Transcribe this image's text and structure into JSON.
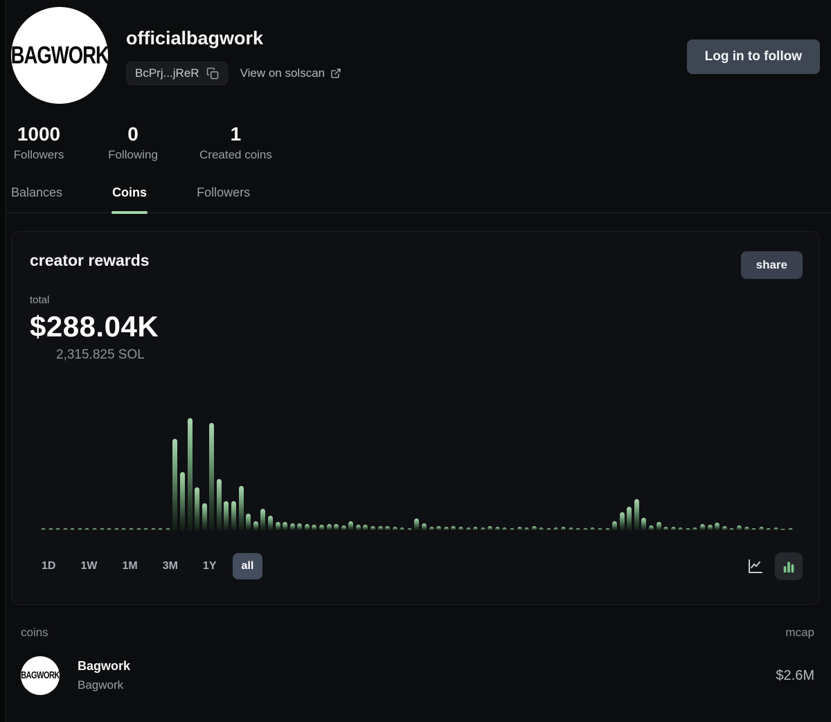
{
  "header": {
    "avatar_text": "BAGWORK",
    "username": "officialbagwork",
    "address_short": "BcPrj...jReR",
    "solscan_link": "View on solscan",
    "follow_button": "Log in to follow"
  },
  "stats": {
    "items": [
      {
        "value": "1000",
        "label": "Followers"
      },
      {
        "value": "0",
        "label": "Following"
      },
      {
        "value": "1",
        "label": "Created coins"
      }
    ]
  },
  "tabs": {
    "items": [
      {
        "label": "Balances",
        "active": false
      },
      {
        "label": "Coins",
        "active": true
      },
      {
        "label": "Followers",
        "active": false
      }
    ]
  },
  "rewards_card": {
    "title": "creator rewards",
    "share_button": "share",
    "total_label": "total",
    "total_usd": "$288.04K",
    "total_sol": "2,315.825 SOL"
  },
  "chart_controls": {
    "ranges": [
      "1D",
      "1W",
      "1M",
      "3M",
      "1Y",
      "all"
    ],
    "active_range": "all",
    "chart_types": [
      "line",
      "bar"
    ],
    "active_chart_type": "bar"
  },
  "chart_data": {
    "type": "bar",
    "title": "creator rewards over time (all)",
    "xlabel": "",
    "ylabel": "",
    "axis_labels_shown": false,
    "unit": "relative bar height in px (no numeric axis shown on screen)",
    "ylim": [
      0,
      170
    ],
    "bar_color_top": "#aad6ae",
    "bar_color_bottom": "#121b14",
    "values": [
      3,
      3,
      3,
      3,
      3,
      3,
      3,
      3,
      3,
      3,
      3,
      3,
      3,
      3,
      3,
      3,
      3,
      3,
      132,
      84,
      162,
      62,
      39,
      155,
      74,
      42,
      42,
      64,
      24,
      13,
      31,
      21,
      12,
      12,
      10,
      10,
      9,
      8,
      8,
      9,
      9,
      7,
      13,
      8,
      8,
      6,
      6,
      6,
      5,
      4,
      3,
      17,
      10,
      5,
      6,
      5,
      6,
      5,
      4,
      5,
      4,
      6,
      5,
      4,
      3,
      5,
      4,
      6,
      4,
      3,
      4,
      5,
      4,
      3,
      3,
      4,
      3,
      3,
      13,
      26,
      34,
      45,
      18,
      7,
      12,
      5,
      5,
      4,
      3,
      4,
      9,
      8,
      11,
      6,
      3,
      7,
      5,
      3,
      5,
      3,
      4,
      2,
      3
    ]
  },
  "coins_section": {
    "header_left": "coins",
    "header_right": "mcap",
    "rows": [
      {
        "name": "Bagwork",
        "ticker": "Bagwork",
        "mcap": "$2.6M",
        "avatar_text": "BAGWORK"
      }
    ]
  }
}
